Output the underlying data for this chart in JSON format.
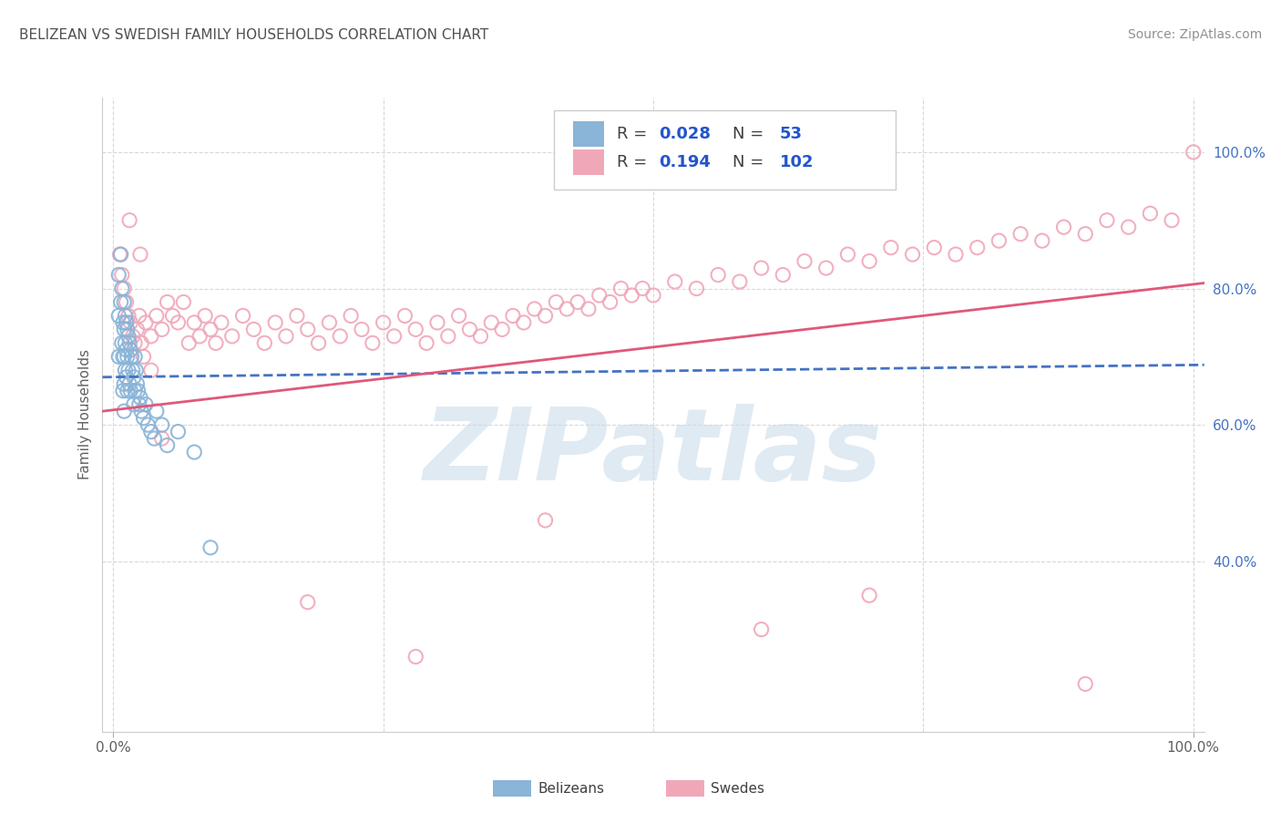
{
  "title": "BELIZEAN VS SWEDISH FAMILY HOUSEHOLDS CORRELATION CHART",
  "source": "Source: ZipAtlas.com",
  "ylabel": "Family Households",
  "blue_color": "#8ab4d8",
  "pink_color": "#f0a8b8",
  "blue_line_color": "#4472c4",
  "pink_line_color": "#e05878",
  "grid_color": "#d8d8d8",
  "watermark_color": "#ccdcec",
  "watermark_text": "ZIPatlas",
  "right_tick_color": "#4472c4",
  "title_color": "#505050",
  "source_color": "#909090",
  "legend_box_color": "#e8e8e8",
  "belizean_x": [
    0.005,
    0.005,
    0.005,
    0.007,
    0.007,
    0.008,
    0.008,
    0.009,
    0.009,
    0.009,
    0.01,
    0.01,
    0.01,
    0.01,
    0.01,
    0.011,
    0.011,
    0.011,
    0.012,
    0.012,
    0.012,
    0.013,
    0.013,
    0.013,
    0.014,
    0.014,
    0.015,
    0.015,
    0.016,
    0.016,
    0.017,
    0.018,
    0.019,
    0.019,
    0.02,
    0.02,
    0.021,
    0.022,
    0.023,
    0.024,
    0.025,
    0.026,
    0.028,
    0.03,
    0.032,
    0.035,
    0.038,
    0.04,
    0.045,
    0.05,
    0.06,
    0.075,
    0.09
  ],
  "belizean_y": [
    0.82,
    0.76,
    0.7,
    0.85,
    0.78,
    0.8,
    0.72,
    0.75,
    0.7,
    0.65,
    0.78,
    0.74,
    0.7,
    0.66,
    0.62,
    0.76,
    0.72,
    0.68,
    0.75,
    0.71,
    0.67,
    0.74,
    0.7,
    0.65,
    0.73,
    0.68,
    0.72,
    0.66,
    0.71,
    0.65,
    0.7,
    0.68,
    0.67,
    0.63,
    0.7,
    0.65,
    0.68,
    0.66,
    0.65,
    0.63,
    0.64,
    0.62,
    0.61,
    0.63,
    0.6,
    0.59,
    0.58,
    0.62,
    0.6,
    0.57,
    0.59,
    0.56,
    0.42
  ],
  "swedish_x": [
    0.006,
    0.008,
    0.01,
    0.012,
    0.014,
    0.016,
    0.018,
    0.02,
    0.022,
    0.024,
    0.026,
    0.028,
    0.03,
    0.035,
    0.04,
    0.045,
    0.05,
    0.055,
    0.06,
    0.065,
    0.07,
    0.075,
    0.08,
    0.085,
    0.09,
    0.095,
    0.1,
    0.11,
    0.12,
    0.13,
    0.14,
    0.15,
    0.16,
    0.17,
    0.18,
    0.19,
    0.2,
    0.21,
    0.22,
    0.23,
    0.24,
    0.25,
    0.26,
    0.27,
    0.28,
    0.29,
    0.3,
    0.31,
    0.32,
    0.33,
    0.34,
    0.35,
    0.36,
    0.37,
    0.38,
    0.39,
    0.4,
    0.41,
    0.42,
    0.43,
    0.44,
    0.45,
    0.46,
    0.47,
    0.48,
    0.49,
    0.5,
    0.52,
    0.54,
    0.56,
    0.58,
    0.6,
    0.62,
    0.64,
    0.66,
    0.68,
    0.7,
    0.72,
    0.74,
    0.76,
    0.78,
    0.8,
    0.82,
    0.84,
    0.86,
    0.88,
    0.9,
    0.92,
    0.94,
    0.96,
    0.98,
    1.0,
    0.015,
    0.025,
    0.035,
    0.045,
    0.18,
    0.28,
    0.7,
    0.9,
    0.4,
    0.6
  ],
  "swedish_y": [
    0.85,
    0.82,
    0.8,
    0.78,
    0.76,
    0.75,
    0.73,
    0.72,
    0.74,
    0.76,
    0.72,
    0.7,
    0.75,
    0.73,
    0.76,
    0.74,
    0.78,
    0.76,
    0.75,
    0.78,
    0.72,
    0.75,
    0.73,
    0.76,
    0.74,
    0.72,
    0.75,
    0.73,
    0.76,
    0.74,
    0.72,
    0.75,
    0.73,
    0.76,
    0.74,
    0.72,
    0.75,
    0.73,
    0.76,
    0.74,
    0.72,
    0.75,
    0.73,
    0.76,
    0.74,
    0.72,
    0.75,
    0.73,
    0.76,
    0.74,
    0.73,
    0.75,
    0.74,
    0.76,
    0.75,
    0.77,
    0.76,
    0.78,
    0.77,
    0.78,
    0.77,
    0.79,
    0.78,
    0.8,
    0.79,
    0.8,
    0.79,
    0.81,
    0.8,
    0.82,
    0.81,
    0.83,
    0.82,
    0.84,
    0.83,
    0.85,
    0.84,
    0.86,
    0.85,
    0.86,
    0.85,
    0.86,
    0.87,
    0.88,
    0.87,
    0.89,
    0.88,
    0.9,
    0.89,
    0.91,
    0.9,
    1.0,
    0.9,
    0.85,
    0.68,
    0.58,
    0.34,
    0.26,
    0.35,
    0.22,
    0.46,
    0.3
  ],
  "bel_line_start_y": 0.67,
  "bel_line_end_y": 0.688,
  "swe_line_start_y": 0.62,
  "swe_line_end_y": 0.808,
  "xlim": [
    -0.01,
    1.01
  ],
  "ylim": [
    0.15,
    1.08
  ],
  "ytick_vals": [
    0.4,
    0.6,
    0.8,
    1.0
  ],
  "ytick_labels": [
    "40.0%",
    "60.0%",
    "80.0%",
    "100.0%"
  ],
  "xtick_vals": [
    0.0,
    1.0
  ],
  "xtick_labels": [
    "0.0%",
    "100.0%"
  ]
}
